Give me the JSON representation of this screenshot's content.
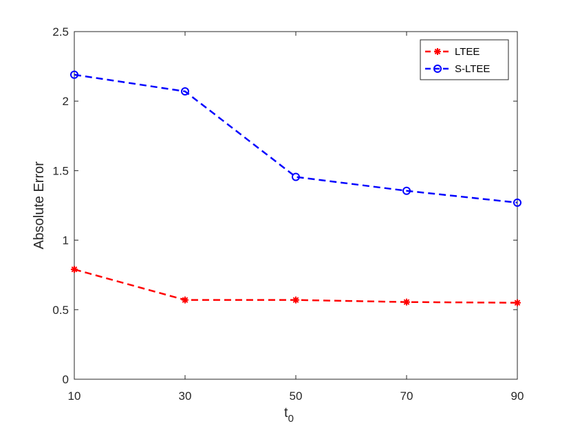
{
  "chart_data": {
    "type": "line",
    "title": "",
    "xlabel": "t",
    "xlabel_subscript": "0",
    "ylabel": "Absolute Error",
    "x": [
      10,
      30,
      50,
      70,
      90
    ],
    "xlim": [
      10,
      90
    ],
    "ylim": [
      0,
      2.5
    ],
    "xticks": [
      10,
      30,
      50,
      70,
      90
    ],
    "yticks": [
      0,
      0.5,
      1,
      1.5,
      2,
      2.5
    ],
    "xtick_labels": [
      "10",
      "30",
      "50",
      "70",
      "90"
    ],
    "ytick_labels": [
      "0",
      "0.5",
      "1",
      "1.5",
      "2",
      "2.5"
    ],
    "grid": false,
    "legend_position": "top-right",
    "series": [
      {
        "name": "LTEE",
        "values": [
          0.79,
          0.57,
          0.57,
          0.555,
          0.55
        ],
        "color": "#ff0000",
        "marker": "asterisk",
        "linestyle": "dashed"
      },
      {
        "name": "S-LTEE",
        "values": [
          2.19,
          2.07,
          1.455,
          1.355,
          1.27
        ],
        "color": "#0000ff",
        "marker": "circle",
        "linestyle": "dashed"
      }
    ]
  }
}
